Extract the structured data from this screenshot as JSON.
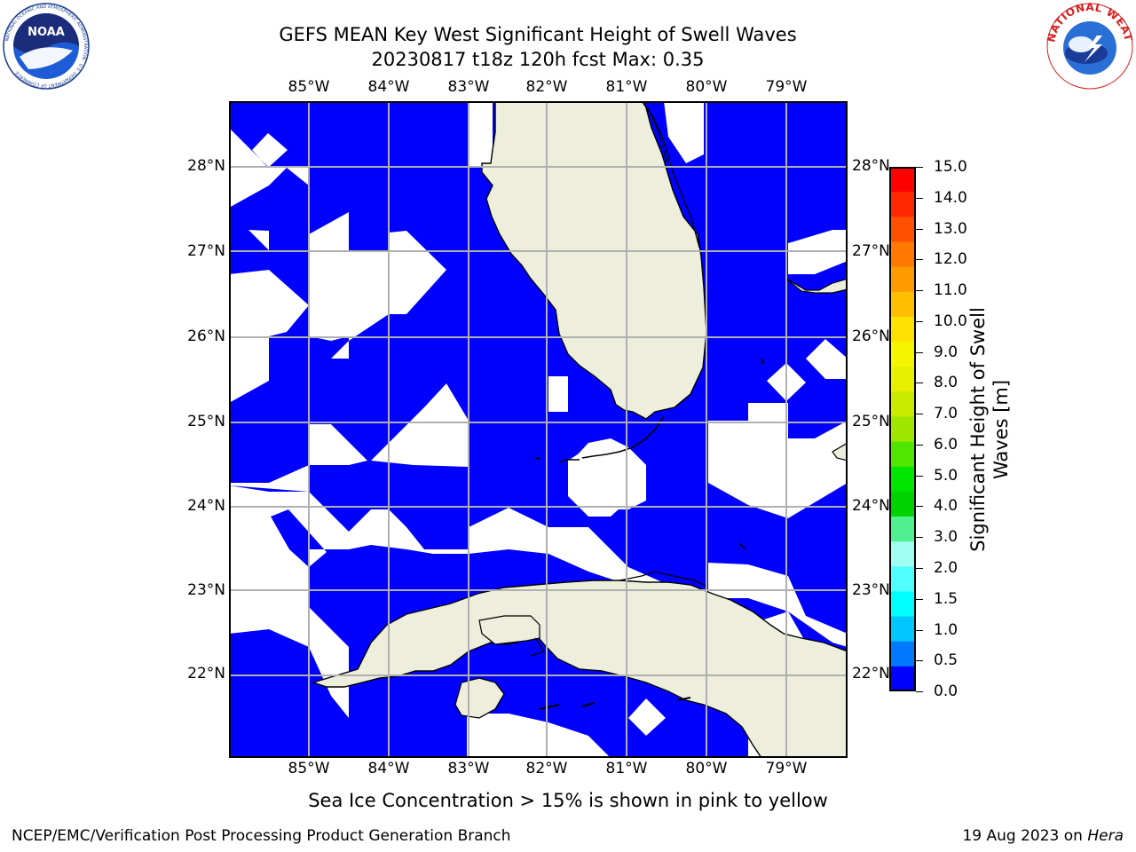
{
  "title_line1": "GEFS MEAN Key West Significant Height of Swell Waves",
  "title_line2": "20230817 t18z 120h fcst   Max: 0.35",
  "map": {
    "lon_labels": [
      "85°W",
      "84°W",
      "83°W",
      "82°W",
      "81°W",
      "80°W",
      "79°W"
    ],
    "lat_labels": [
      "28°N",
      "27°N",
      "26°N",
      "25°N",
      "24°N",
      "23°N",
      "22°N"
    ],
    "land_color": "#eeeedc",
    "water_color": "#0000ff",
    "grid_color": "#b0b0b0"
  },
  "colorbar": {
    "title": "Significant Height of Swell Waves [m]",
    "title_line1": "Significant Height of Swell",
    "title_line2": "Waves [m]",
    "labels": [
      "15.0",
      "14.0",
      "13.0",
      "12.0",
      "11.0",
      "10.0",
      "9.0",
      "8.0",
      "7.0",
      "6.0",
      "5.0",
      "4.0",
      "3.0",
      "2.0",
      "1.5",
      "1.0",
      "0.5",
      "0.0"
    ],
    "colors": [
      "#ff0000",
      "#ff2800",
      "#ff5000",
      "#ff7800",
      "#ff9b00",
      "#ffbe00",
      "#ffe100",
      "#f5f500",
      "#e6f000",
      "#c8eb00",
      "#a0e600",
      "#50e600",
      "#00e600",
      "#00d200",
      "#50f090",
      "#a0fff0",
      "#50ffff",
      "#00ffff",
      "#00c8ff",
      "#0078ff",
      "#0000ff"
    ]
  },
  "footnote": "Sea Ice Concentration > 15% is shown in pink to yellow",
  "footer_left": "NCEP/EMC/Verification Post Processing Product Generation Branch",
  "footer_right_date": "19 Aug 2023 on ",
  "footer_right_host": "Hera",
  "logos": {
    "noaa_text": "NOAA",
    "noaa_ring": "NATIONAL OCEANIC AND ATMOSPHERIC ADMINISTRATION · U.S. DEPARTMENT OF COMMERCE",
    "nws_ring": "NATIONAL WEATHER SERVICE"
  }
}
